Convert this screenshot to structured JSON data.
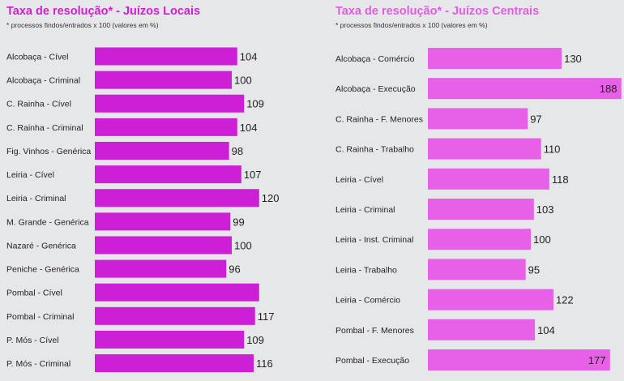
{
  "colors": {
    "left_title": "#d21ed2",
    "right_title": "#e35be3",
    "left_bar": "#cd1fd6",
    "right_bar": "#e760e7",
    "background": "#e6e7e9"
  },
  "chart_data": [
    {
      "type": "bar",
      "orientation": "horizontal",
      "title": "Taxa de resolução* - Juízos Locais",
      "subtitle": "* processos findos/entrados x 100 (valores em %)",
      "categories": [
        "Alcobaça - Cível",
        "Alcobaça - Criminal",
        "C. Rainha - Cível",
        "C. Rainha - Criminal",
        "Fig. Vinhos - Genérica",
        "Leiria - Cível",
        "Leiria - Criminal",
        "M. Grande - Genérica",
        "Nazaré - Genérica",
        "Peniche - Genérica",
        "Pombal - Cível",
        "Pombal - Criminal",
        "P. Mós - Cível",
        "P. Mós - Criminal"
      ],
      "values": [
        104,
        100,
        109,
        104,
        98,
        107,
        120,
        99,
        100,
        96,
        120,
        117,
        109,
        116
      ],
      "value_labels": [
        "104",
        "100",
        "109",
        "104",
        "98",
        "107",
        "120",
        "99",
        "100",
        "96",
        "",
        "117",
        "109",
        "116"
      ],
      "grid": false,
      "legend": false
    },
    {
      "type": "bar",
      "orientation": "horizontal",
      "title": "Taxa de resolução* - Juízos Centrais",
      "subtitle": "* processos findos/entrados x 100 (valores em %)",
      "categories": [
        "Alcobaça - Comércio",
        "Alcobaça - Execução",
        "C. Rainha - F. Menores",
        "C. Rainha - Trabalho",
        "Leiria - Cível",
        "Leiria - Criminal",
        "Leiria - Inst. Criminal",
        "Leiria - Trabalho",
        "Leiria - Comércio",
        "Pombal - F. Menores",
        "Pombal - Execução"
      ],
      "values": [
        130,
        188,
        97,
        110,
        118,
        103,
        100,
        95,
        122,
        104,
        177
      ],
      "value_labels": [
        "130",
        "188",
        "97",
        "110",
        "118",
        "103",
        "100",
        "95",
        "122",
        "104",
        "177"
      ],
      "grid": false,
      "legend": false
    }
  ]
}
